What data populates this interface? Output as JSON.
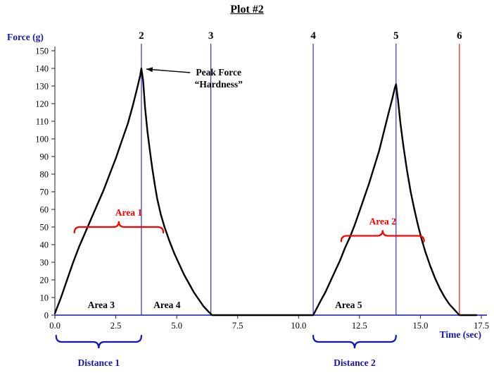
{
  "chart_data": {
    "type": "line",
    "title": "Plot #2",
    "xlabel": "Time (sec)",
    "ylabel": "Force (g)",
    "xlim": [
      0,
      17.5
    ],
    "ylim": [
      0,
      150
    ],
    "x_ticks": [
      "0.0",
      "2.5",
      "5.0",
      "7.5",
      "10.0",
      "12.5",
      "15.0",
      "17.5"
    ],
    "y_tick_step": 10,
    "grid": false,
    "legend": "none",
    "colors": {
      "axis": "#1414B4",
      "curve": "#000000",
      "area": "#FF0000",
      "distance": "#1414B4",
      "marker_blue": "#3333B8",
      "marker_red": "#CC2222"
    },
    "series": [
      {
        "name": "Force",
        "color": "#000000",
        "points": [
          [
            0,
            1
          ],
          [
            0.25,
            10
          ],
          [
            0.5,
            20
          ],
          [
            0.75,
            30
          ],
          [
            1,
            39
          ],
          [
            1.25,
            47
          ],
          [
            1.5,
            55
          ],
          [
            1.75,
            63
          ],
          [
            2,
            71
          ],
          [
            2.25,
            80
          ],
          [
            2.5,
            89
          ],
          [
            2.75,
            99
          ],
          [
            3,
            109
          ],
          [
            3.2,
            119
          ],
          [
            3.4,
            130
          ],
          [
            3.5,
            136
          ],
          [
            3.55,
            140
          ],
          [
            3.62,
            133
          ],
          [
            3.7,
            118
          ],
          [
            3.8,
            104
          ],
          [
            3.9,
            93
          ],
          [
            4,
            83
          ],
          [
            4.1,
            74
          ],
          [
            4.2,
            66
          ],
          [
            4.35,
            57
          ],
          [
            4.5,
            50
          ],
          [
            4.7,
            42
          ],
          [
            4.9,
            35
          ],
          [
            5.1,
            29
          ],
          [
            5.3,
            23
          ],
          [
            5.5,
            18
          ],
          [
            5.7,
            13
          ],
          [
            5.9,
            9
          ],
          [
            6.1,
            5
          ],
          [
            6.3,
            2
          ],
          [
            6.45,
            0
          ],
          [
            7,
            0
          ],
          [
            7.5,
            0
          ],
          [
            8,
            0
          ],
          [
            8.5,
            0
          ],
          [
            9,
            0
          ],
          [
            9.5,
            0
          ],
          [
            10,
            0
          ],
          [
            10.6,
            0
          ],
          [
            10.75,
            4
          ],
          [
            10.9,
            8
          ],
          [
            11.1,
            13
          ],
          [
            11.3,
            19
          ],
          [
            11.5,
            25
          ],
          [
            11.7,
            31
          ],
          [
            11.9,
            38
          ],
          [
            12.1,
            44
          ],
          [
            12.3,
            51
          ],
          [
            12.5,
            59
          ],
          [
            12.7,
            67
          ],
          [
            12.9,
            75
          ],
          [
            13.1,
            84
          ],
          [
            13.3,
            93
          ],
          [
            13.5,
            104
          ],
          [
            13.7,
            115
          ],
          [
            13.85,
            123
          ],
          [
            13.95,
            129
          ],
          [
            14,
            131
          ],
          [
            14.08,
            122
          ],
          [
            14.18,
            109
          ],
          [
            14.3,
            96
          ],
          [
            14.45,
            82
          ],
          [
            14.6,
            70
          ],
          [
            14.75,
            60
          ],
          [
            14.9,
            51
          ],
          [
            15.05,
            43
          ],
          [
            15.2,
            36
          ],
          [
            15.4,
            28
          ],
          [
            15.6,
            21
          ],
          [
            15.8,
            15
          ],
          [
            16,
            10
          ],
          [
            16.2,
            6
          ],
          [
            16.4,
            3
          ],
          [
            16.6,
            0
          ],
          [
            16.9,
            0
          ],
          [
            17.3,
            0
          ]
        ]
      }
    ],
    "markers": [
      {
        "label": "2",
        "x": 3.55,
        "color": "#3333B8"
      },
      {
        "label": "3",
        "x": 6.4,
        "color": "#3333B8"
      },
      {
        "label": "4",
        "x": 10.6,
        "color": "#3333B8"
      },
      {
        "label": "5",
        "x": 14.0,
        "color": "#3333B8"
      },
      {
        "label": "6",
        "x": 16.6,
        "color": "#CC2222"
      }
    ],
    "peak_annotation": {
      "line1": "Peak Force",
      "line2": "“Hardness”",
      "text_x": 6.72,
      "text_y": 136,
      "arrow_from": [
        5.55,
        137.6
      ],
      "arrow_to": [
        3.75,
        139.6
      ]
    },
    "area_braces": [
      {
        "label": "Area 1",
        "x1": 0.8,
        "x2": 4.45,
        "y": 50,
        "label_dx": 14
      },
      {
        "label": "Area 2",
        "x1": 11.75,
        "x2": 15.15,
        "y": 45,
        "label_dx": 0
      }
    ],
    "area_labels": [
      {
        "label": "Area 3",
        "x": 1.9,
        "y": 4
      },
      {
        "label": "Area 4",
        "x": 4.6,
        "y": 4
      },
      {
        "label": "Area 5",
        "x": 12.05,
        "y": 4
      }
    ],
    "distance_braces": [
      {
        "label": "Distance 1",
        "x1": 0.05,
        "x2": 3.55
      },
      {
        "label": "Distance 2",
        "x1": 10.6,
        "x2": 14.0
      }
    ]
  }
}
